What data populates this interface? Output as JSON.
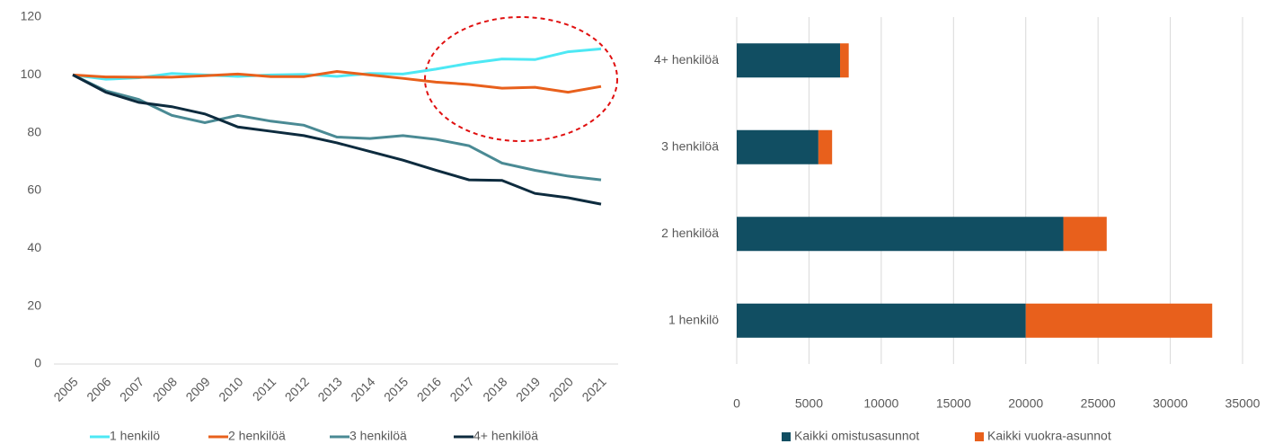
{
  "chart_data": [
    {
      "type": "line",
      "categories": [
        "2005",
        "2006",
        "2007",
        "2008",
        "2009",
        "2010",
        "2011",
        "2012",
        "2013",
        "2014",
        "2015",
        "2016",
        "2017",
        "2018",
        "2019",
        "2020",
        "2021"
      ],
      "ylim": [
        0,
        120
      ],
      "yticks": [
        0,
        20,
        40,
        60,
        80,
        100,
        120
      ],
      "grid": false,
      "legend": "bottom",
      "series": [
        {
          "name": "1 henkilö",
          "color": "#4de8f4",
          "values": [
            100,
            98.5,
            99,
            100.5,
            100,
            99.5,
            100,
            100.2,
            99.5,
            100.5,
            100.3,
            102,
            104,
            105.5,
            105.3,
            108,
            109
          ]
        },
        {
          "name": "2 henkilöä",
          "color": "#e8601c",
          "values": [
            100,
            99.3,
            99.2,
            99.2,
            99.7,
            100.3,
            99.4,
            99.4,
            101.2,
            100,
            98.8,
            97.5,
            96.7,
            95.4,
            95.7,
            94,
            96
          ]
        },
        {
          "name": "3 henkilöä",
          "color": "#4a8a94",
          "values": [
            100,
            94.5,
            91.5,
            86,
            83.5,
            86,
            84,
            82.6,
            78.5,
            78,
            79,
            77.7,
            75.5,
            69.5,
            67,
            65,
            63.7
          ]
        },
        {
          "name": "4+ henkilöä",
          "color": "#0d2b3e",
          "values": [
            100,
            94,
            90.5,
            89,
            86.5,
            82,
            80.5,
            79,
            76.5,
            73.5,
            70.5,
            67,
            63.7,
            63.5,
            59,
            57.5,
            55.3
          ]
        }
      ]
    },
    {
      "type": "stacked_barh",
      "categories": [
        "1 henkilö",
        "2 henkilöä",
        "3 henkilöä",
        "4+ henkilöä"
      ],
      "xlim": [
        0,
        35000
      ],
      "xticks": [
        0,
        5000,
        10000,
        15000,
        20000,
        25000,
        30000,
        35000
      ],
      "grid": true,
      "legend": "bottom",
      "series": [
        {
          "name": "Kaikki omistusasunnot",
          "color": "#114e62",
          "values": [
            20000,
            22600,
            5650,
            7150
          ]
        },
        {
          "name": "Kaikki vuokra-asunnot",
          "color": "#e8601c",
          "values": [
            12900,
            3000,
            950,
            600
          ]
        }
      ]
    }
  ]
}
